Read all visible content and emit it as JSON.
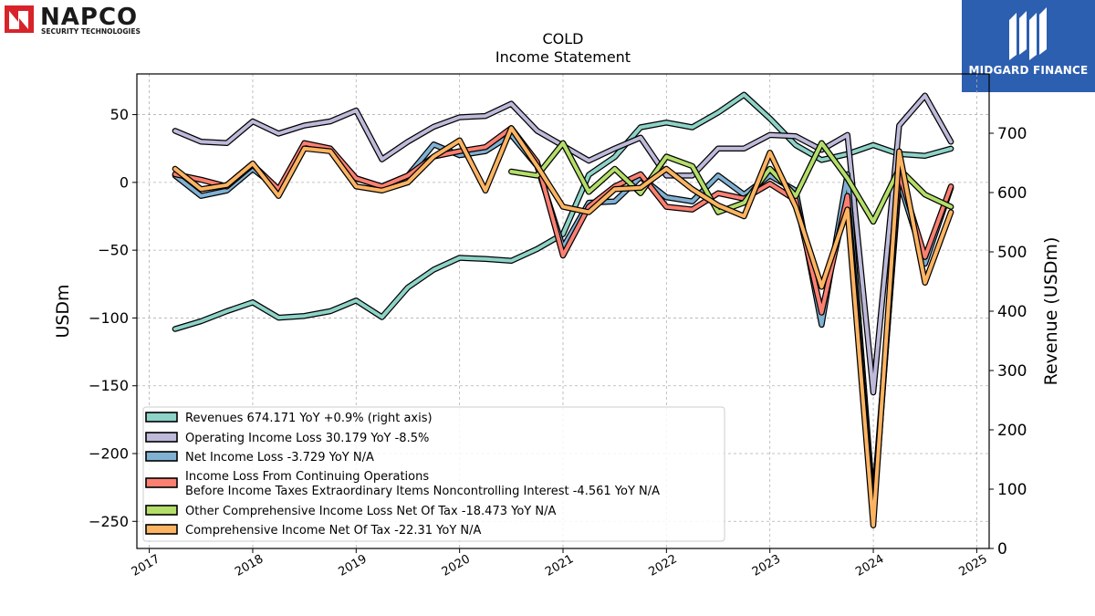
{
  "logos": {
    "left_name": "NAPCO",
    "left_sub": "SECURITY TECHNOLOGIES",
    "right_name": "MIDGARD FINANCE"
  },
  "chart_data": {
    "type": "line",
    "title": "COLD",
    "subtitle": "Income Statement",
    "ylabel": "USDm",
    "ylabel_right": "Revenue (USDm)",
    "ylim": [
      -270,
      80
    ],
    "ylim_right": [
      0,
      800
    ],
    "yticks": [
      50,
      0,
      -50,
      -100,
      -150,
      -200,
      -250
    ],
    "yticks_labels": [
      "50",
      "0",
      "−50",
      "−100",
      "−150",
      "−200",
      "−250"
    ],
    "yticks_right": [
      700,
      600,
      500,
      400,
      300,
      200,
      100,
      0
    ],
    "xlim": [
      2016.88,
      2025.12
    ],
    "xticks": [
      "2017",
      "2018",
      "2019",
      "2020",
      "2021",
      "2022",
      "2023",
      "2024",
      "2025"
    ],
    "grid": true,
    "legend_position": "lower-left",
    "series": [
      {
        "name": "Revenues",
        "legend": "Revenues  674.171 YoY +0.9% (right axis)",
        "color": "#8dd3c7",
        "axis": "right",
        "x": [
          2017.25,
          2017.5,
          2017.75,
          2018.0,
          2018.25,
          2018.5,
          2018.75,
          2019.0,
          2019.25,
          2019.5,
          2019.75,
          2020.0,
          2020.25,
          2020.5,
          2020.75,
          2021.0,
          2021.25,
          2021.5,
          2021.75,
          2022.0,
          2022.25,
          2022.5,
          2022.75,
          2023.0,
          2023.25,
          2023.5,
          2023.75,
          2024.0,
          2024.25,
          2024.5,
          2024.75
        ],
        "values": [
          370,
          383,
          400,
          415,
          389,
          392,
          400,
          418,
          390,
          440,
          470,
          490,
          488,
          485,
          505,
          530,
          630,
          660,
          710,
          718,
          710,
          735,
          765,
          725,
          680,
          655,
          665,
          680,
          665,
          662,
          674
        ]
      },
      {
        "name": "Operating Income Loss",
        "legend": "Operating Income Loss  30.179 YoY -8.5%",
        "color": "#bebada",
        "axis": "left",
        "x": [
          2017.25,
          2017.5,
          2017.75,
          2018.0,
          2018.25,
          2018.5,
          2018.75,
          2019.0,
          2019.25,
          2019.5,
          2019.75,
          2020.0,
          2020.25,
          2020.5,
          2020.75,
          2021.0,
          2021.25,
          2021.5,
          2021.75,
          2022.0,
          2022.25,
          2022.5,
          2022.75,
          2023.0,
          2023.25,
          2023.5,
          2023.75,
          2024.0,
          2024.25,
          2024.5,
          2024.75
        ],
        "values": [
          38,
          30,
          29,
          45,
          36,
          42,
          45,
          53,
          17,
          30,
          41,
          48,
          49,
          58,
          38,
          27,
          16,
          25,
          33,
          5,
          5,
          25,
          25,
          35,
          34,
          24,
          35,
          -155,
          42,
          64,
          30
        ]
      },
      {
        "name": "Net Income Loss",
        "legend": "Net Income Loss  -3.729 YoY N/A",
        "color": "#80b1d3",
        "axis": "left",
        "x": [
          2017.25,
          2017.5,
          2017.75,
          2018.0,
          2018.25,
          2018.5,
          2018.75,
          2019.0,
          2019.25,
          2019.5,
          2019.75,
          2020.0,
          2020.25,
          2020.5,
          2020.75,
          2021.0,
          2021.25,
          2021.5,
          2021.75,
          2022.0,
          2022.25,
          2022.5,
          2022.75,
          2023.0,
          2023.25,
          2023.5,
          2023.75,
          2024.0,
          2024.25,
          2024.5,
          2024.75
        ],
        "values": [
          5,
          -10,
          -6,
          10,
          -5,
          27,
          24,
          3,
          -3,
          5,
          28,
          20,
          23,
          35,
          12,
          -48,
          -15,
          -14,
          4,
          -11,
          -14,
          5,
          -9,
          5,
          -6,
          -105,
          6,
          -240,
          1,
          -60,
          -4
        ]
      },
      {
        "name": "Income Loss From Continuing Operations Before Income Taxes Extraordinary Items Noncontrolling Interest",
        "legend": "Income Loss From Continuing Operations",
        "legend2": "Before Income Taxes Extraordinary Items Noncontrolling Interest  -4.561 YoY N/A",
        "color": "#fb8072",
        "axis": "left",
        "x": [
          2017.25,
          2017.5,
          2017.75,
          2018.0,
          2018.25,
          2018.5,
          2018.75,
          2019.0,
          2019.25,
          2019.5,
          2019.75,
          2020.0,
          2020.25,
          2020.5,
          2020.75,
          2021.0,
          2021.25,
          2021.5,
          2021.75,
          2022.0,
          2022.25,
          2022.5,
          2022.75,
          2023.0,
          2023.25,
          2023.5,
          2023.75,
          2024.0,
          2024.25,
          2024.5,
          2024.75
        ],
        "values": [
          6,
          2,
          -3,
          13,
          -5,
          29,
          25,
          3,
          -3,
          5,
          19,
          23,
          26,
          40,
          15,
          -54,
          -18,
          -3,
          6,
          -18,
          -20,
          -8,
          -12,
          -1,
          -13,
          -96,
          -10,
          -247,
          7,
          -55,
          -3
        ]
      },
      {
        "name": "Other Comprehensive Income Loss Net Of Tax",
        "legend": "Other Comprehensive Income Loss Net Of Tax  -18.473 YoY N/A",
        "color": "#b3de69",
        "axis": "left",
        "x": [
          2020.5,
          2020.75,
          2021.0,
          2021.25,
          2021.5,
          2021.75,
          2022.0,
          2022.25,
          2022.5,
          2022.75,
          2023.0,
          2023.25,
          2023.5,
          2023.75,
          2024.0,
          2024.25,
          2024.5,
          2024.75
        ],
        "values": [
          8,
          5,
          29,
          -7,
          10,
          -8,
          19,
          12,
          -22,
          -15,
          10,
          -10,
          29,
          3,
          -29,
          10,
          -9,
          -18
        ]
      },
      {
        "name": "Comprehensive Income Net Of Tax",
        "legend": "Comprehensive Income Net Of Tax  -22.31 YoY N/A",
        "color": "#fdb462",
        "axis": "left",
        "x": [
          2017.25,
          2017.5,
          2017.75,
          2018.0,
          2018.25,
          2018.5,
          2018.75,
          2019.0,
          2019.25,
          2019.5,
          2019.75,
          2020.0,
          2020.25,
          2020.5,
          2020.75,
          2021.0,
          2021.25,
          2021.5,
          2021.75,
          2022.0,
          2022.25,
          2022.5,
          2022.75,
          2023.0,
          2023.25,
          2023.5,
          2023.75,
          2024.0,
          2024.25,
          2024.5,
          2024.75
        ],
        "values": [
          10,
          -5,
          -2,
          14,
          -10,
          25,
          23,
          -3,
          -6,
          0,
          19,
          31,
          -6,
          40,
          12,
          -18,
          -22,
          -5,
          -4,
          10,
          -5,
          -17,
          -25,
          22,
          -18,
          -77,
          -20,
          -253,
          23,
          -74,
          -22
        ]
      }
    ]
  }
}
